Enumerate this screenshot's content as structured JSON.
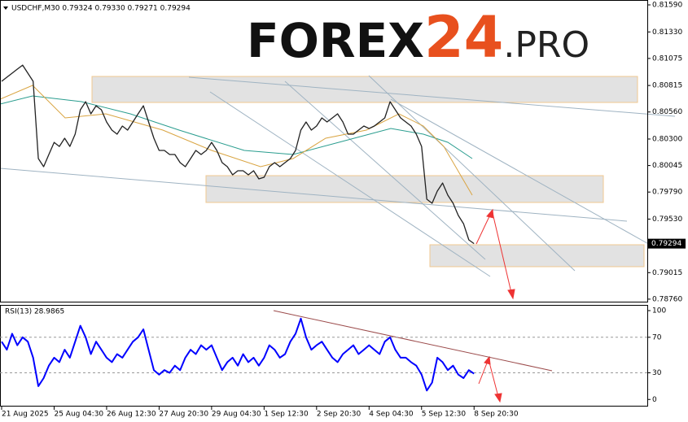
{
  "watermark": {
    "main": "FOREX",
    "number": "24",
    "suffix": ".PRO"
  },
  "chart_data": [
    {
      "type": "line",
      "title": "USDCHF,M30  0.79324 0.79330 0.79271 0.79294",
      "color": "#222222",
      "values": [
        0.80855,
        0.80894,
        0.80933,
        0.80972,
        0.81011,
        0.80933,
        0.80855,
        0.80112,
        0.80034,
        0.80151,
        0.80268,
        0.80229,
        0.80308,
        0.80229,
        0.80347,
        0.80581,
        0.80659,
        0.80542,
        0.8062,
        0.80581,
        0.80464,
        0.80386,
        0.80347,
        0.80425,
        0.80386,
        0.80464,
        0.80542,
        0.8062,
        0.80464,
        0.80308,
        0.8019,
        0.8019,
        0.80151,
        0.80151,
        0.80073,
        0.80034,
        0.80112,
        0.8019,
        0.80151,
        0.8019,
        0.80268,
        0.8019,
        0.80073,
        0.80034,
        0.79956,
        0.79995,
        0.79995,
        0.79956,
        0.79995,
        0.79917,
        0.79932,
        0.80034,
        0.80073,
        0.80034,
        0.80073,
        0.80112,
        0.8019,
        0.80386,
        0.80464,
        0.80386,
        0.80425,
        0.80503,
        0.80464,
        0.80503,
        0.80542,
        0.80464,
        0.80347,
        0.80347,
        0.80386,
        0.80425,
        0.80401,
        0.80425,
        0.80464,
        0.80503,
        0.80659,
        0.80581,
        0.80503,
        0.80464,
        0.80425,
        0.80347,
        0.80229,
        0.79721,
        0.79682,
        0.79799,
        0.79877,
        0.7976,
        0.79682,
        0.79565,
        0.79486,
        0.7933,
        0.79294
      ],
      "last_price": 0.79294,
      "ylim": [
        0.78728,
        0.81637
      ],
      "yticks": [
        {
          "value": 0.8159,
          "label": "0.81590"
        },
        {
          "value": 0.8133,
          "label": "0.81330"
        },
        0.81075,
        0.80815,
        {
          "value": 0.8056,
          "label": "0.80560"
        },
        {
          "value": 0.803,
          "label": "0.80300"
        },
        0.80045,
        {
          "value": 0.7979,
          "label": "0.79790"
        },
        {
          "value": 0.7953,
          "label": "0.79530"
        },
        0.79015,
        {
          "value": 0.7876,
          "label": "0.78760"
        }
      ]
    },
    {
      "type": "line",
      "title": "RSI(13) 28.9865",
      "color": "#0000ff",
      "values": [
        65,
        56,
        74,
        61,
        70,
        65,
        47,
        15,
        24,
        38,
        47,
        42,
        56,
        47,
        65,
        83,
        70,
        51,
        65,
        56,
        47,
        42,
        51,
        47,
        56,
        65,
        70,
        79,
        56,
        33,
        28,
        33,
        30,
        38,
        33,
        47,
        56,
        51,
        61,
        56,
        61,
        47,
        33,
        42,
        47,
        38,
        51,
        42,
        47,
        38,
        47,
        61,
        56,
        47,
        51,
        65,
        74,
        91,
        70,
        56,
        61,
        65,
        56,
        47,
        42,
        51,
        56,
        61,
        51,
        56,
        61,
        56,
        51,
        65,
        70,
        56,
        47,
        47,
        42,
        38,
        28,
        10,
        19,
        47,
        42,
        33,
        38,
        28,
        24,
        33,
        28.9865
      ],
      "ylim": [
        -8,
        105.5
      ],
      "yticks": [
        100,
        70,
        30,
        0
      ],
      "levels": [
        70,
        30
      ],
      "xlim": [
        -0.31,
        123
      ],
      "xticks": [
        {
          "value": 0,
          "label": "21 Aug 2025"
        },
        {
          "value": 10,
          "label": "25 Aug 04:30"
        },
        {
          "value": 20,
          "label": "26 Aug 12:30"
        },
        {
          "value": 30,
          "label": "27 Aug 20:30"
        },
        {
          "value": 40,
          "label": "29 Aug 04:30"
        },
        {
          "value": 50,
          "label": "1 Sep 12:30"
        },
        {
          "value": 60,
          "label": "2 Sep 20:30"
        },
        {
          "value": 70,
          "label": "4 Sep 04:30"
        },
        {
          "value": 80,
          "label": "5 Sep 12:30"
        },
        {
          "value": 90,
          "label": "8 Sep 20:30"
        }
      ]
    }
  ]
}
